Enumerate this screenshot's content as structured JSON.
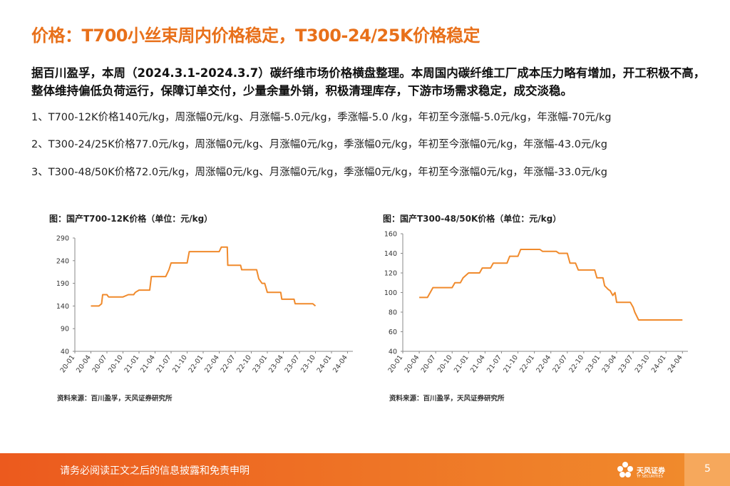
{
  "title": "价格：T700小丝束周内价格稳定，T300-24/25K价格稳定",
  "summary": "据百川盈孚，本周（2024.3.1-2024.3.7）碳纤维市场价格横盘整理。本周国内碳纤维工厂成本压力略有增加，开工积极不高，整体维持偏低负荷运行，保障订单交付，少量余量外销，积极清理库存，下游市场需求稳定，成交淡稳。",
  "items": [
    "1、T700-12K价格140元/kg，周涨幅0元/kg、月涨幅-5.0元/kg，季涨幅-5.0 /kg，年初至今涨幅-5.0元/kg，年涨幅-70元/kg",
    "2、T300-24/25K价格77.0元/kg，周涨幅0元/kg、月涨幅0元/kg，季涨幅0元/kg，年初至今涨幅0元/kg，年涨幅-43.0元/kg",
    "3、T300-48/50K价格72.0元/kg，周涨幅0元/kg、月涨幅0元/kg，季涨幅0元/kg，年初至今涨幅0元/kg，年涨幅-33.0元/kg"
  ],
  "chart_data": [
    {
      "type": "line",
      "title": "图：国产T700-12K价格（单位：元/kg）",
      "source": "资料来源：百川盈孚，天风证券研究所",
      "color": "#f08a2c",
      "ylim": [
        40,
        290
      ],
      "yticks": [
        40,
        90,
        140,
        190,
        240,
        290
      ],
      "xlim": [
        0,
        52
      ],
      "xticks": [
        [
          0,
          "20-01"
        ],
        [
          3,
          "20-04"
        ],
        [
          6,
          "20-07"
        ],
        [
          9,
          "20-10"
        ],
        [
          12,
          "21-01"
        ],
        [
          15,
          "21-04"
        ],
        [
          18,
          "21-07"
        ],
        [
          21,
          "21-10"
        ],
        [
          24,
          "22-01"
        ],
        [
          27,
          "22-04"
        ],
        [
          30,
          "22-07"
        ],
        [
          33,
          "22-10"
        ],
        [
          36,
          "23-01"
        ],
        [
          39,
          "23-04"
        ],
        [
          42,
          "23-07"
        ],
        [
          45,
          "23-10"
        ],
        [
          48,
          "24-01"
        ],
        [
          51,
          "24-04"
        ]
      ],
      "x": [
        3,
        4.5,
        5,
        5.2,
        6,
        6.3,
        9,
        10,
        11,
        11.3,
        12,
        14,
        14.3,
        17,
        17.6,
        18,
        21,
        21.4,
        27,
        27.4,
        28.5,
        28.6,
        31,
        31.2,
        34,
        34.4,
        35,
        35.5,
        36,
        36.7,
        37,
        38.5,
        38.7,
        41,
        41.2,
        44,
        44.5,
        45
      ],
      "y": [
        140,
        140,
        145,
        165,
        165,
        160,
        160,
        165,
        165,
        170,
        175,
        175,
        205,
        205,
        220,
        235,
        235,
        260,
        260,
        270,
        270,
        230,
        230,
        220,
        220,
        200,
        190,
        190,
        170,
        170,
        170,
        170,
        155,
        155,
        145,
        145,
        145,
        140
      ]
    },
    {
      "type": "line",
      "title": "图：国产T300-48/50K价格（单位：元/kg）",
      "source": "资料来源：百川盈孚，天风证券研究所",
      "color": "#f08a2c",
      "ylim": [
        40,
        160
      ],
      "yticks": [
        40,
        60,
        80,
        100,
        120,
        140,
        160
      ],
      "xlim": [
        0,
        52
      ],
      "xticks": [
        [
          0,
          "20-01"
        ],
        [
          3,
          "20-04"
        ],
        [
          6,
          "20-07"
        ],
        [
          9,
          "20-10"
        ],
        [
          12,
          "21-01"
        ],
        [
          15,
          "21-04"
        ],
        [
          18,
          "21-07"
        ],
        [
          21,
          "21-10"
        ],
        [
          24,
          "22-01"
        ],
        [
          27,
          "22-04"
        ],
        [
          30,
          "22-07"
        ],
        [
          33,
          "22-10"
        ],
        [
          36,
          "23-01"
        ],
        [
          39,
          "23-04"
        ],
        [
          42,
          "23-07"
        ],
        [
          45,
          "23-10"
        ],
        [
          48,
          "24-01"
        ],
        [
          51,
          "24-04"
        ]
      ],
      "x": [
        3,
        4.5,
        5,
        5.5,
        7,
        9,
        9.5,
        10.5,
        11,
        12,
        14,
        14.5,
        16,
        16.5,
        19,
        19.5,
        21,
        21.5,
        25,
        25.5,
        28,
        28.5,
        30,
        30.5,
        31.5,
        32,
        35,
        35.4,
        36.5,
        36.8,
        37.5,
        37.8,
        38.3,
        38.7,
        39,
        39.5,
        41.5,
        42,
        42.3,
        43,
        45,
        51
      ],
      "y": [
        95,
        95,
        100,
        105,
        105,
        105,
        110,
        110,
        115,
        120,
        120,
        125,
        125,
        130,
        130,
        137,
        137,
        144,
        144,
        142,
        142,
        140,
        140,
        130,
        130,
        123,
        123,
        115,
        115,
        107,
        103,
        102,
        97,
        100,
        90,
        90,
        90,
        85,
        80,
        72,
        72,
        72
      ]
    }
  ],
  "footer": {
    "text": "请务必阅读正文之后的信息披露和免责申明",
    "page": "5",
    "logo_name": "天风证券",
    "logo_sub": "TF SECURITIES"
  }
}
